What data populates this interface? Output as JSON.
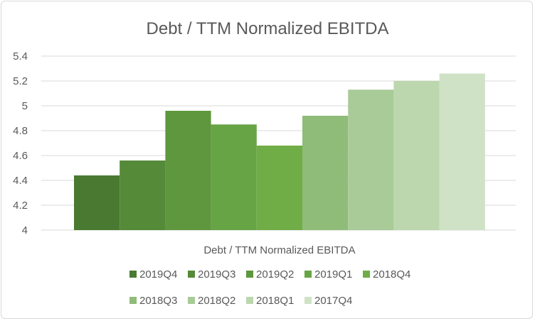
{
  "chart_data": {
    "type": "bar",
    "title": "Debt / TTM Normalized EBITDA",
    "categories": [
      "Debt / TTM Normalized EBITDA"
    ],
    "series": [
      {
        "name": "2019Q4",
        "values": [
          4.44
        ],
        "color": "#4a7a32"
      },
      {
        "name": "2019Q3",
        "values": [
          4.56
        ],
        "color": "#548a38"
      },
      {
        "name": "2019Q2",
        "values": [
          4.96
        ],
        "color": "#5e973d"
      },
      {
        "name": "2019Q1",
        "values": [
          4.85
        ],
        "color": "#67a446"
      },
      {
        "name": "2018Q4",
        "values": [
          4.68
        ],
        "color": "#70ad47"
      },
      {
        "name": "2018Q3",
        "values": [
          4.92
        ],
        "color": "#8fbc79"
      },
      {
        "name": "2018Q2",
        "values": [
          5.13
        ],
        "color": "#a9cb98"
      },
      {
        "name": "2018Q1",
        "values": [
          5.2
        ],
        "color": "#bcd7ae"
      },
      {
        "name": "2017Q4",
        "values": [
          5.26
        ],
        "color": "#d0e2c6"
      }
    ],
    "ylim": [
      4,
      5.4
    ],
    "yticks": [
      4,
      4.2,
      4.4,
      4.6,
      4.8,
      5,
      5.2,
      5.4
    ],
    "ytick_labels": [
      "4",
      "4.2",
      "4.4",
      "4.6",
      "4.8",
      "5",
      "5.2",
      "5.4"
    ],
    "xlabel": "",
    "ylabel": "",
    "grid": true,
    "legend": "bottom"
  }
}
